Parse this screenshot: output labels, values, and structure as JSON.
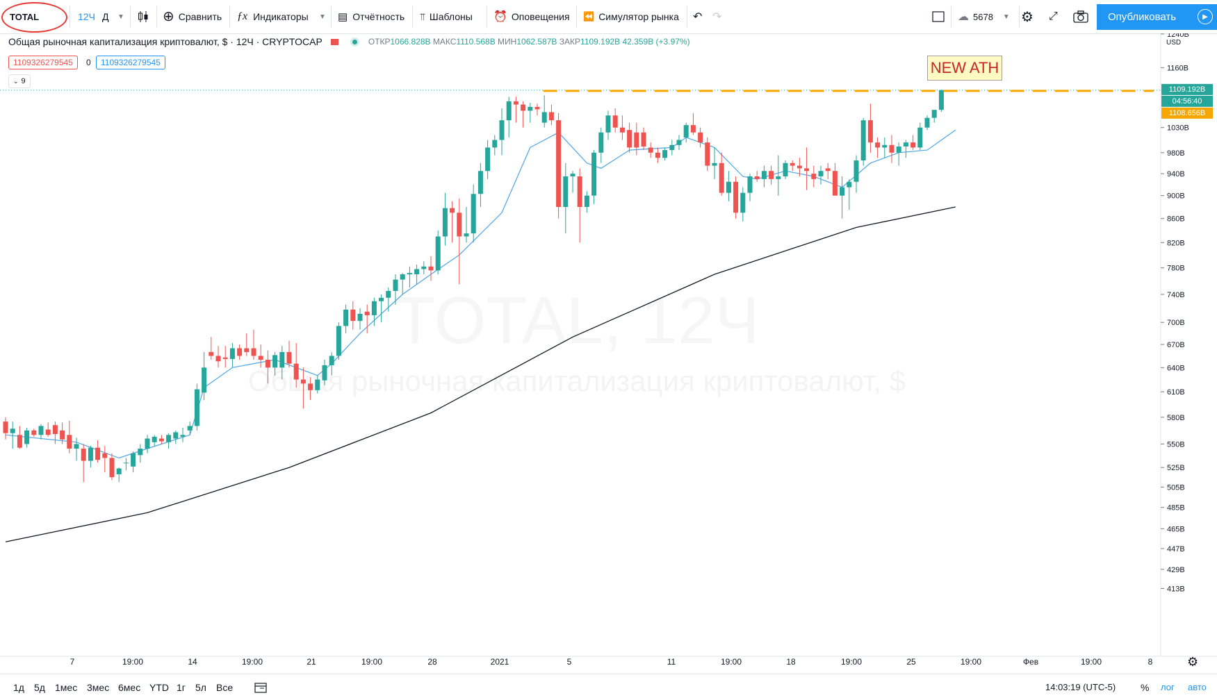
{
  "toolbar": {
    "symbol": "TOTAL",
    "interval": "12Ч",
    "chart_style": "Д",
    "compare": "Сравнить",
    "indicators": "Индикаторы",
    "reports": "Отчётность",
    "templates": "Шаблоны",
    "alerts": "Оповещения",
    "replay": "Симулятор рынка",
    "layout_count": "5678",
    "publish": "Опубликовать"
  },
  "legend": {
    "title": "Общая рыночная капитализация криптовалют, $ · 12Ч · CRYPTOCAP",
    "open_label": "ОТКР",
    "open": "1066.828B",
    "high_label": "МАКС",
    "high": "1110.568B",
    "low_label": "МИН",
    "low": "1062.587B",
    "close_label": "ЗАКР",
    "close": "1109.192B",
    "change": "42.359B (+3.97%)",
    "sell_value": "1109326279545",
    "spread": "0",
    "buy_value": "1109326279545",
    "indicators_count": "9"
  },
  "annotation": {
    "text": "NEW ATH"
  },
  "watermark": {
    "line1": "TOTAL, 12Ч",
    "line2": "Общая рыночная капитализация криптовалют, $"
  },
  "price_axis": {
    "currency": "USD",
    "last_price": "1109.192B",
    "countdown": "04:56:40",
    "level_price": "1108.656B"
  },
  "time_axis": {
    "labels": [
      "7",
      "19:00",
      "14",
      "19:00",
      "21",
      "19:00",
      "28",
      "2021",
      "5",
      "11",
      "19:00",
      "18",
      "19:00",
      "25",
      "19:00",
      "Фев",
      "19:00",
      "8"
    ]
  },
  "bottom_bar": {
    "ranges": [
      "1д",
      "5д",
      "1мес",
      "3мес",
      "6мес",
      "YTD",
      "1г",
      "5л",
      "Все"
    ],
    "time": "14:03:19 (UTC-5)",
    "percent": "%",
    "log": "лог",
    "auto": "авто"
  },
  "colors": {
    "up": "#26a69a",
    "down": "#ef5350",
    "ema_fast": "#4ca5e8",
    "ma_slow": "#131722",
    "ath_line": "#f7a600",
    "accent": "#2196f3"
  },
  "chart_data": {
    "type": "candlestick",
    "interval": "12h",
    "y_unit": "B USD",
    "y_scale": "log",
    "y_ticks": [
      413,
      429,
      447,
      465,
      485,
      505,
      525,
      550,
      580,
      610,
      640,
      670,
      700,
      740,
      780,
      820,
      860,
      900,
      940,
      980,
      1030,
      1160,
      1240
    ],
    "x_ticks": [
      "7",
      "19:00",
      "14",
      "19:00",
      "21",
      "19:00",
      "28",
      "2021",
      "5",
      "11",
      "19:00",
      "18",
      "19:00",
      "25",
      "19:00",
      "Фев",
      "19:00",
      "8"
    ],
    "candles": [
      [
        0,
        575,
        580,
        555,
        562
      ],
      [
        1,
        562,
        575,
        545,
        567
      ],
      [
        2,
        560,
        570,
        545,
        546
      ],
      [
        3,
        550,
        568,
        546,
        565
      ],
      [
        4,
        565,
        567,
        558,
        560
      ],
      [
        5,
        560,
        572,
        555,
        570
      ],
      [
        6,
        566,
        574,
        558,
        560
      ],
      [
        7,
        571,
        575,
        550,
        561
      ],
      [
        8,
        565,
        574,
        550,
        555
      ],
      [
        9,
        560,
        576,
        540,
        545
      ],
      [
        10,
        545,
        557,
        532,
        550
      ],
      [
        11,
        545,
        550,
        510,
        532
      ],
      [
        12,
        532,
        548,
        525,
        546
      ],
      [
        13,
        546,
        554,
        530,
        533
      ],
      [
        14,
        540,
        548,
        520,
        535
      ],
      [
        15,
        535,
        540,
        512,
        515
      ],
      [
        16,
        518,
        525,
        510,
        524
      ],
      [
        17,
        530,
        535,
        522,
        530
      ],
      [
        18,
        526,
        542,
        520,
        540
      ],
      [
        19,
        538,
        550,
        530,
        545
      ],
      [
        20,
        545,
        560,
        540,
        556
      ],
      [
        21,
        552,
        560,
        548,
        558
      ],
      [
        22,
        556,
        560,
        550,
        553
      ],
      [
        23,
        552,
        562,
        545,
        560
      ],
      [
        24,
        556,
        565,
        550,
        563
      ],
      [
        25,
        558,
        568,
        552,
        560
      ],
      [
        26,
        565,
        575,
        560,
        570
      ],
      [
        27,
        570,
        620,
        565,
        613
      ],
      [
        28,
        609,
        660,
        600,
        640
      ],
      [
        29,
        660,
        680,
        650,
        655
      ],
      [
        30,
        655,
        668,
        640,
        648
      ],
      [
        31,
        653,
        668,
        640,
        651
      ],
      [
        32,
        651,
        672,
        640,
        665
      ],
      [
        33,
        665,
        670,
        650,
        655
      ],
      [
        34,
        665,
        685,
        655,
        660
      ],
      [
        35,
        665,
        690,
        650,
        655
      ],
      [
        36,
        655,
        670,
        640,
        650
      ],
      [
        37,
        650,
        662,
        620,
        640
      ],
      [
        38,
        640,
        660,
        630,
        656
      ],
      [
        39,
        640,
        668,
        625,
        660
      ],
      [
        40,
        660,
        675,
        640,
        645
      ],
      [
        41,
        645,
        672,
        615,
        625
      ],
      [
        42,
        625,
        640,
        590,
        620
      ],
      [
        43,
        620,
        628,
        600,
        612
      ],
      [
        44,
        612,
        630,
        608,
        625
      ],
      [
        45,
        624,
        650,
        618,
        643
      ],
      [
        46,
        643,
        660,
        630,
        655
      ],
      [
        47,
        655,
        700,
        650,
        695
      ],
      [
        48,
        695,
        725,
        685,
        718
      ],
      [
        49,
        718,
        730,
        690,
        702
      ],
      [
        50,
        702,
        720,
        690,
        712
      ],
      [
        51,
        715,
        725,
        685,
        710
      ],
      [
        52,
        710,
        735,
        695,
        730
      ],
      [
        53,
        730,
        740,
        700,
        735
      ],
      [
        54,
        735,
        750,
        715,
        745
      ],
      [
        55,
        745,
        770,
        725,
        762
      ],
      [
        56,
        762,
        772,
        740,
        770
      ],
      [
        57,
        770,
        782,
        750,
        772
      ],
      [
        58,
        770,
        785,
        755,
        778
      ],
      [
        59,
        778,
        790,
        770,
        782
      ],
      [
        60,
        782,
        798,
        760,
        776
      ],
      [
        61,
        776,
        840,
        770,
        830
      ],
      [
        62,
        830,
        905,
        815,
        878
      ],
      [
        63,
        878,
        890,
        820,
        870
      ],
      [
        64,
        870,
        895,
        755,
        830
      ],
      [
        65,
        830,
        880,
        820,
        835
      ],
      [
        66,
        835,
        920,
        820,
        903
      ],
      [
        67,
        903,
        960,
        880,
        945
      ],
      [
        68,
        945,
        1005,
        930,
        990
      ],
      [
        69,
        990,
        1015,
        975,
        1005
      ],
      [
        70,
        1005,
        1070,
        975,
        1045
      ],
      [
        71,
        1045,
        1095,
        1010,
        1085
      ],
      [
        72,
        1085,
        1095,
        1040,
        1078
      ],
      [
        73,
        1078,
        1085,
        1030,
        1065
      ],
      [
        74,
        1065,
        1082,
        1040,
        1073
      ],
      [
        75,
        1073,
        1080,
        1055,
        1068
      ],
      [
        76,
        1040,
        1098,
        1030,
        1062
      ],
      [
        77,
        1062,
        1078,
        1035,
        1045
      ],
      [
        78,
        1045,
        1060,
        860,
        880
      ],
      [
        79,
        880,
        960,
        835,
        935
      ],
      [
        80,
        935,
        945,
        905,
        940
      ],
      [
        81,
        935,
        950,
        820,
        880
      ],
      [
        82,
        880,
        908,
        870,
        900
      ],
      [
        83,
        900,
        985,
        885,
        980
      ],
      [
        84,
        980,
        1030,
        960,
        1020
      ],
      [
        85,
        1020,
        1065,
        1005,
        1055
      ],
      [
        86,
        1055,
        1070,
        1020,
        1030
      ],
      [
        87,
        1030,
        1055,
        1005,
        1020
      ],
      [
        88,
        1025,
        1040,
        980,
        990
      ],
      [
        89,
        1020,
        1040,
        975,
        990
      ],
      [
        90,
        1020,
        1030,
        985,
        992
      ],
      [
        91,
        990,
        1000,
        970,
        980
      ],
      [
        92,
        980,
        990,
        960,
        970
      ],
      [
        93,
        970,
        990,
        965,
        985
      ],
      [
        94,
        985,
        1005,
        975,
        995
      ],
      [
        95,
        995,
        1015,
        985,
        1005
      ],
      [
        96,
        1010,
        1040,
        1000,
        1035
      ],
      [
        97,
        1035,
        1060,
        1015,
        1020
      ],
      [
        98,
        1020,
        1030,
        990,
        1000
      ],
      [
        99,
        1000,
        1010,
        945,
        955
      ],
      [
        100,
        955,
        990,
        930,
        960
      ],
      [
        101,
        960,
        980,
        900,
        905
      ],
      [
        102,
        905,
        945,
        890,
        925
      ],
      [
        103,
        925,
        935,
        860,
        870
      ],
      [
        104,
        870,
        915,
        855,
        905
      ],
      [
        105,
        905,
        940,
        890,
        935
      ],
      [
        106,
        935,
        945,
        925,
        930
      ],
      [
        107,
        930,
        955,
        915,
        945
      ],
      [
        108,
        945,
        955,
        920,
        930
      ],
      [
        109,
        930,
        975,
        900,
        935
      ],
      [
        110,
        935,
        965,
        930,
        960
      ],
      [
        111,
        960,
        965,
        945,
        955
      ],
      [
        112,
        955,
        970,
        935,
        950
      ],
      [
        113,
        950,
        990,
        910,
        945
      ],
      [
        114,
        940,
        955,
        915,
        930
      ],
      [
        115,
        935,
        955,
        920,
        945
      ],
      [
        116,
        950,
        960,
        930,
        945
      ],
      [
        117,
        945,
        960,
        900,
        900
      ],
      [
        118,
        900,
        935,
        860,
        915
      ],
      [
        119,
        915,
        930,
        875,
        925
      ],
      [
        120,
        925,
        975,
        905,
        965
      ],
      [
        121,
        965,
        1050,
        955,
        1045
      ],
      [
        122,
        1045,
        1080,
        980,
        1000
      ],
      [
        123,
        1000,
        1010,
        970,
        990
      ],
      [
        124,
        990,
        1010,
        970,
        995
      ],
      [
        125,
        995,
        1015,
        960,
        980
      ],
      [
        126,
        980,
        1000,
        955,
        992
      ],
      [
        127,
        992,
        1005,
        970,
        1000
      ],
      [
        128,
        1000,
        1015,
        985,
        990
      ],
      [
        129,
        990,
        1040,
        985,
        1030
      ],
      [
        130,
        1030,
        1055,
        1025,
        1050
      ],
      [
        131,
        1050,
        1065,
        1040,
        1066.8
      ],
      [
        132,
        1066.8,
        1110.6,
        1062.6,
        1109.2
      ]
    ],
    "series": [
      {
        "name": "EMA (short)",
        "type": "line",
        "values": [
          [
            0,
            560
          ],
          [
            10,
            552
          ],
          [
            16,
            535
          ],
          [
            20,
            545
          ],
          [
            26,
            560
          ],
          [
            28,
            615
          ],
          [
            32,
            640
          ],
          [
            38,
            650
          ],
          [
            44,
            630
          ],
          [
            46,
            645
          ],
          [
            50,
            685
          ],
          [
            56,
            740
          ],
          [
            60,
            770
          ],
          [
            64,
            800
          ],
          [
            70,
            870
          ],
          [
            74,
            990
          ],
          [
            78,
            1020
          ],
          [
            82,
            960
          ],
          [
            84,
            950
          ],
          [
            88,
            985
          ],
          [
            94,
            990
          ],
          [
            96,
            1010
          ],
          [
            100,
            990
          ],
          [
            104,
            935
          ],
          [
            106,
            930
          ],
          [
            110,
            945
          ],
          [
            114,
            935
          ],
          [
            118,
            915
          ],
          [
            122,
            960
          ],
          [
            126,
            980
          ],
          [
            130,
            985
          ],
          [
            134,
            1025
          ]
        ]
      },
      {
        "name": "MA (long)",
        "type": "line",
        "values": [
          [
            0,
            453
          ],
          [
            20,
            480
          ],
          [
            40,
            525
          ],
          [
            60,
            585
          ],
          [
            80,
            680
          ],
          [
            100,
            770
          ],
          [
            120,
            845
          ],
          [
            134,
            880
          ]
        ]
      }
    ]
  }
}
